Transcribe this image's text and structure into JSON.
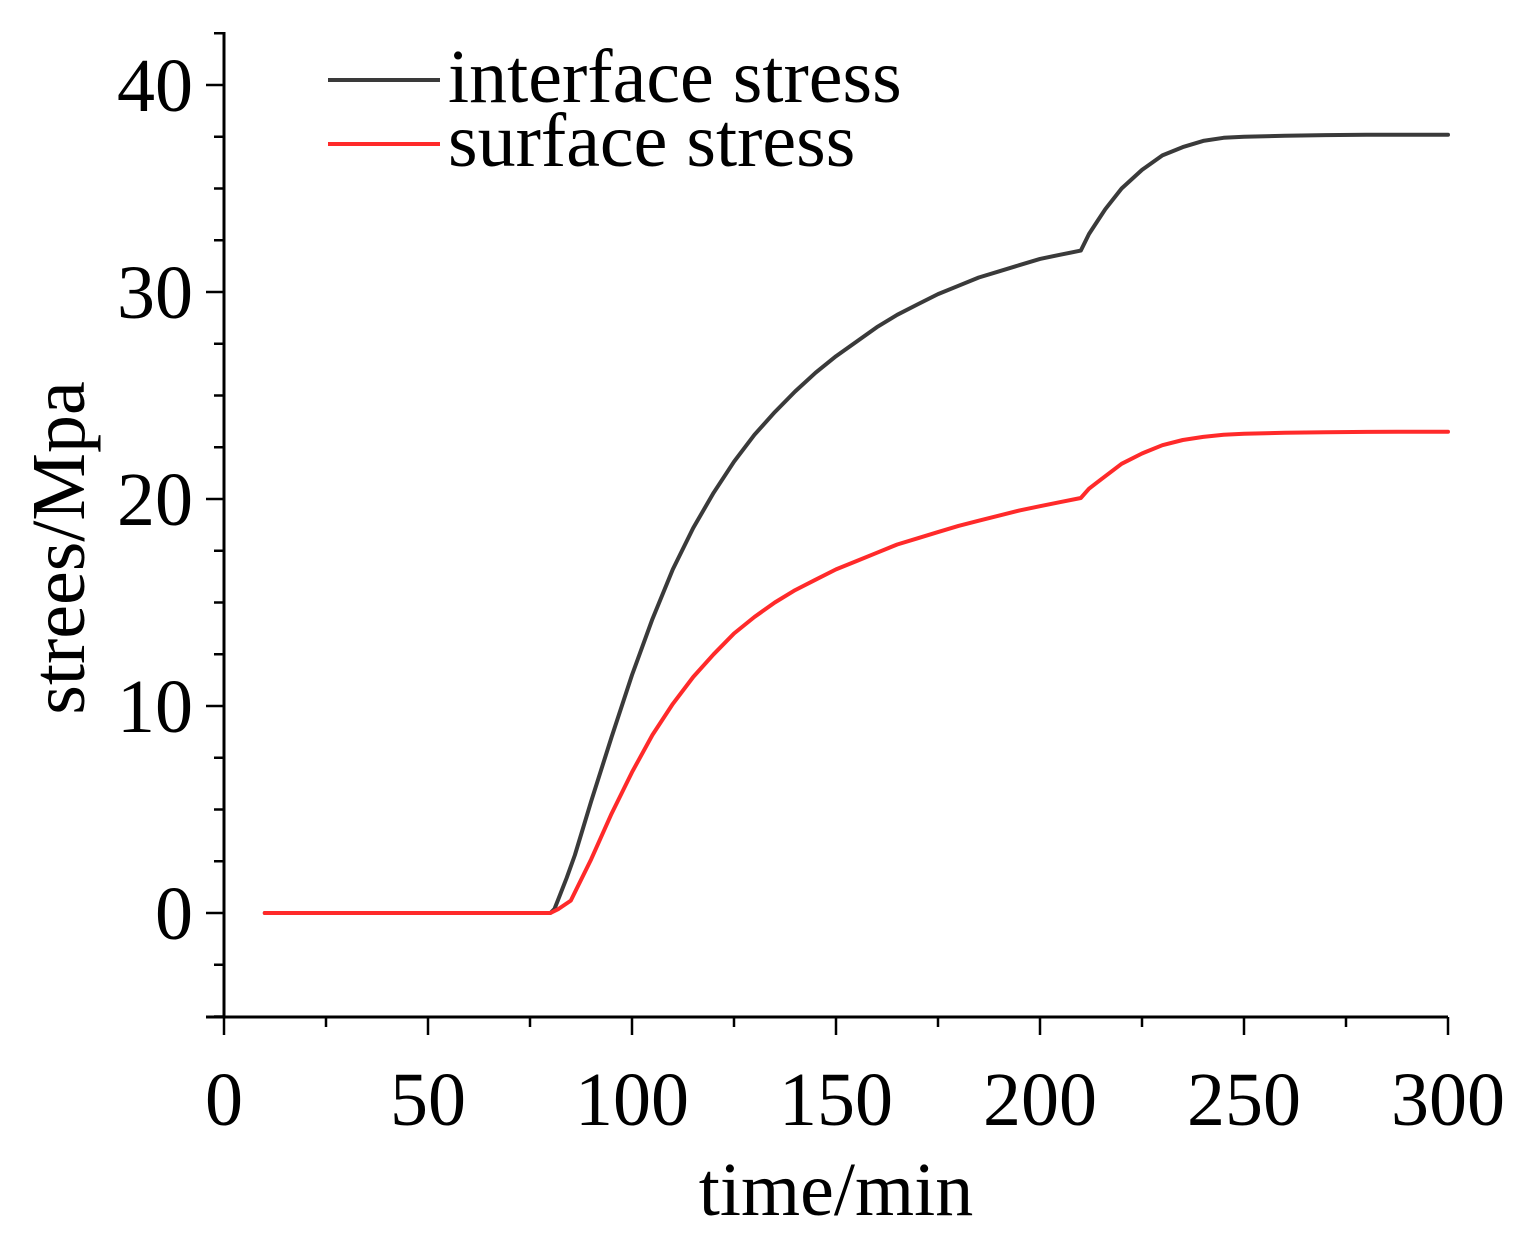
{
  "chart_data": {
    "type": "line",
    "xlabel": "time/min",
    "ylabel": "strees/Mpa",
    "xlim": [
      0,
      300
    ],
    "ylim": [
      -5,
      42.5
    ],
    "xticks": [
      0,
      50,
      100,
      150,
      200,
      250,
      300
    ],
    "yticks": [
      0,
      10,
      20,
      30,
      40
    ],
    "x_minor_step": 25,
    "y_minor_step": 2.5,
    "grid": false,
    "legend_position": "top-left",
    "series": [
      {
        "name": "interface stress",
        "color": "#3a3a3a",
        "x": [
          10,
          80,
          81,
          82,
          84,
          86,
          90,
          95,
          100,
          105,
          110,
          115,
          120,
          125,
          130,
          135,
          140,
          145,
          150,
          155,
          160,
          165,
          170,
          175,
          180,
          185,
          190,
          195,
          200,
          205,
          210,
          212,
          214,
          216,
          220,
          225,
          230,
          235,
          240,
          245,
          250,
          260,
          270,
          280,
          290,
          300
        ],
        "y": [
          0,
          0,
          0.2,
          0.7,
          1.7,
          2.8,
          5.4,
          8.5,
          11.5,
          14.2,
          16.6,
          18.6,
          20.3,
          21.8,
          23.1,
          24.2,
          25.2,
          26.1,
          26.9,
          27.6,
          28.3,
          28.9,
          29.4,
          29.9,
          30.3,
          30.7,
          31.0,
          31.3,
          31.6,
          31.8,
          32.0,
          32.8,
          33.4,
          34.0,
          35.0,
          35.9,
          36.6,
          37.0,
          37.3,
          37.45,
          37.5,
          37.55,
          37.58,
          37.6,
          37.6,
          37.6
        ]
      },
      {
        "name": "surface stress",
        "color": "#ff2a2a",
        "x": [
          10,
          80,
          82,
          85,
          90,
          95,
          100,
          105,
          110,
          115,
          120,
          125,
          130,
          135,
          140,
          145,
          150,
          155,
          160,
          165,
          170,
          175,
          180,
          185,
          190,
          195,
          200,
          205,
          210,
          212,
          214,
          216,
          220,
          225,
          230,
          235,
          240,
          245,
          250,
          260,
          270,
          280,
          290,
          300
        ],
        "y": [
          0,
          0,
          0.2,
          0.6,
          2.6,
          4.8,
          6.8,
          8.6,
          10.1,
          11.4,
          12.5,
          13.5,
          14.3,
          15.0,
          15.6,
          16.1,
          16.6,
          17.0,
          17.4,
          17.8,
          18.1,
          18.4,
          18.7,
          18.95,
          19.2,
          19.45,
          19.65,
          19.85,
          20.05,
          20.5,
          20.8,
          21.1,
          21.7,
          22.2,
          22.6,
          22.85,
          23.0,
          23.1,
          23.15,
          23.2,
          23.22,
          23.24,
          23.25,
          23.25
        ]
      }
    ]
  }
}
